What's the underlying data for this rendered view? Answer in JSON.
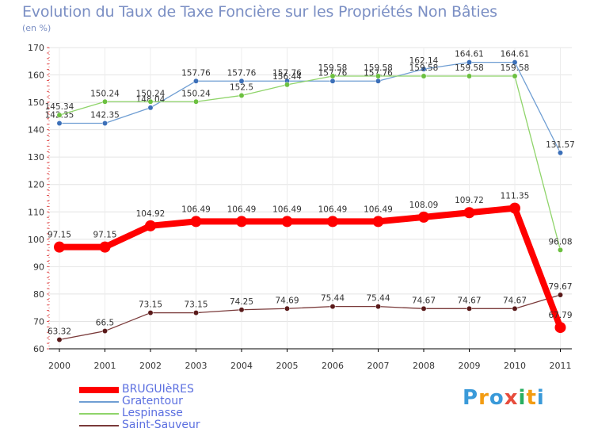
{
  "title": "Evolution du Taux de Taxe Foncière sur les Propriétés Non Bâties",
  "subtitle": "(en %)",
  "logo": {
    "letters": [
      "P",
      "r",
      "o",
      "x",
      "i",
      "t",
      "i"
    ],
    "colors": [
      "#3a9ad9",
      "#f39c12",
      "#3a9ad9",
      "#e74c3c",
      "#27ae60",
      "#f39c12",
      "#3a9ad9"
    ]
  },
  "chart_data": {
    "type": "line",
    "title": "Evolution du Taux de Taxe Foncière sur les Propriétés Non Bâties",
    "ylabel": "(en %)",
    "xlabel": "",
    "categories": [
      "2000",
      "2001",
      "2002",
      "2003",
      "2004",
      "2005",
      "2006",
      "2007",
      "2008",
      "2009",
      "2010",
      "2011"
    ],
    "ylim": [
      60,
      170
    ],
    "yticks": [
      60,
      70,
      80,
      90,
      100,
      110,
      120,
      130,
      140,
      150,
      160,
      170
    ],
    "grid": true,
    "series": [
      {
        "name": "Gratentour",
        "color": "#6f9ed3",
        "marker": "#3b6fb8",
        "values": [
          142.35,
          142.35,
          148.04,
          157.76,
          157.76,
          157.76,
          157.76,
          157.76,
          162.14,
          164.61,
          164.61,
          131.57
        ],
        "labels": [
          "142.35",
          "142.35",
          "148.04",
          "157.76",
          "157.76",
          "157.76",
          "157.76",
          "157.76",
          "162.14",
          "164.61",
          "164.61",
          "131.57"
        ]
      },
      {
        "name": "Lespinasse",
        "color": "#8fd46a",
        "marker": "#6cc040",
        "values": [
          145.34,
          150.24,
          150.24,
          150.24,
          152.5,
          156.44,
          159.58,
          159.58,
          159.58,
          159.58,
          159.58,
          96.08
        ],
        "labels": [
          "145.34",
          "150.24",
          "150.24",
          "150.24",
          "152.5",
          "156.44",
          "159.58",
          "159.58",
          "159.58",
          "159.58",
          "159.58",
          "96.08"
        ]
      },
      {
        "name": "Saint-Sauveur",
        "color": "#7a3a3a",
        "marker": "#5a1a1a",
        "values": [
          63.32,
          66.5,
          73.15,
          73.15,
          74.25,
          74.69,
          75.44,
          75.44,
          74.67,
          74.67,
          74.67,
          79.67
        ],
        "labels": [
          "63.32",
          "66.5",
          "73.15",
          "73.15",
          "74.25",
          "74.69",
          "75.44",
          "75.44",
          "74.67",
          "74.67",
          "74.67",
          "79.67"
        ]
      },
      {
        "name": "BRUGUIèRES",
        "color": "#ff0000",
        "marker": "#ff0000",
        "values": [
          97.15,
          97.15,
          104.92,
          106.49,
          106.49,
          106.49,
          106.49,
          106.49,
          108.09,
          109.72,
          111.35,
          67.79
        ],
        "labels": [
          "97.15",
          "97.15",
          "104.92",
          "106.49",
          "106.49",
          "106.49",
          "106.49",
          "106.49",
          "108.09",
          "109.72",
          "111.35",
          "67.79"
        ]
      }
    ],
    "legend_order": [
      "BRUGUIèRES",
      "Gratentour",
      "Lespinasse",
      "Saint-Sauveur"
    ],
    "legend": "bottom-left"
  }
}
